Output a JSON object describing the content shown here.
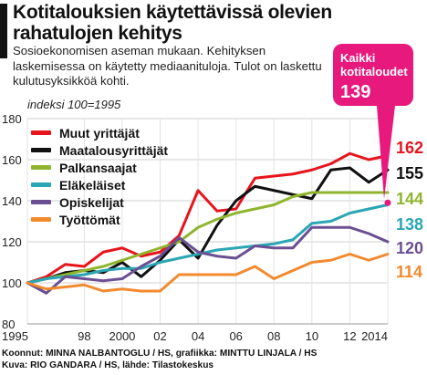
{
  "header": {
    "title": "Kotitalouksien käytettävissä olevien rahatulojen kehitys",
    "subtitle": "Sosioekonomisen aseman mukaan. Kehityksen laskemisessa on käytetty mediaanituloja. Tulot on laskettu kulutusyksikköä kohti."
  },
  "callout": {
    "label": "Kaikki kotitaloudet",
    "value": "139",
    "color": "#e8197d"
  },
  "footer": {
    "line1": "Koonnut: MINNA NALBANTOGLU / HS, grafiikka: MINTTU LINJALA / HS",
    "line2": "Kuva: RIO GANDARA / HS, lähde: Tilastokeskus"
  },
  "chart_data": {
    "type": "line",
    "ylabel": "indeksi 100=1995",
    "ylim": [
      80,
      180
    ],
    "yticks": [
      80,
      100,
      120,
      140,
      160,
      180
    ],
    "xlim": [
      1995,
      2014
    ],
    "xticks": [
      1995,
      1998,
      2000,
      2002,
      2004,
      2006,
      2008,
      2010,
      2012,
      2014
    ],
    "xtick_labels": [
      "1995",
      "98",
      "2000",
      "02",
      "04",
      "06",
      "08",
      "10",
      "12",
      "2014"
    ],
    "grid": true,
    "legend_position": "top-left",
    "x": [
      1995,
      1996,
      1997,
      1998,
      1999,
      2000,
      2001,
      2002,
      2003,
      2004,
      2005,
      2006,
      2007,
      2008,
      2009,
      2010,
      2011,
      2012,
      2013,
      2014
    ],
    "series": [
      {
        "name": "Muut yrittäjät",
        "color": "#e8141c",
        "end_label": "162",
        "values": [
          100,
          103,
          109,
          108,
          115,
          117,
          113,
          115,
          123,
          145,
          135,
          136,
          151,
          152,
          153,
          155,
          158,
          163,
          160,
          162
        ]
      },
      {
        "name": "Maatalousyrittäjät",
        "color": "#111111",
        "end_label": "155",
        "values": [
          100,
          102,
          105,
          106,
          105,
          110,
          103,
          111,
          121,
          112,
          128,
          140,
          147,
          145,
          143,
          141,
          155,
          156,
          149,
          155
        ]
      },
      {
        "name": "Palkansaajat",
        "color": "#8fb52e",
        "end_label": "144",
        "values": [
          100,
          102,
          104,
          106,
          108,
          111,
          114,
          117,
          120,
          127,
          131,
          134,
          136,
          138,
          142,
          144,
          144,
          144,
          144,
          144
        ]
      },
      {
        "name": "Eläkeläiset",
        "color": "#2aa6b4",
        "end_label": "138",
        "values": [
          100,
          102,
          103,
          104,
          106,
          107,
          107,
          110,
          112,
          114,
          116,
          117,
          118,
          119,
          121,
          129,
          130,
          134,
          136,
          138
        ]
      },
      {
        "name": "Opiskelijat",
        "color": "#6b4f93",
        "end_label": "120",
        "values": [
          100,
          95,
          103,
          102,
          101,
          102,
          108,
          113,
          122,
          115,
          113,
          112,
          118,
          117,
          117,
          127,
          127,
          127,
          124,
          120
        ]
      },
      {
        "name": "Työttömät",
        "color": "#f28a2e",
        "end_label": "114",
        "values": [
          100,
          97,
          98,
          99,
          96,
          97,
          96,
          96,
          104,
          104,
          104,
          104,
          108,
          102,
          106,
          110,
          111,
          114,
          111,
          114
        ]
      }
    ],
    "all_households": {
      "name": "Kaikki kotitaloudet",
      "value": 139,
      "color": "#e8197d"
    }
  }
}
